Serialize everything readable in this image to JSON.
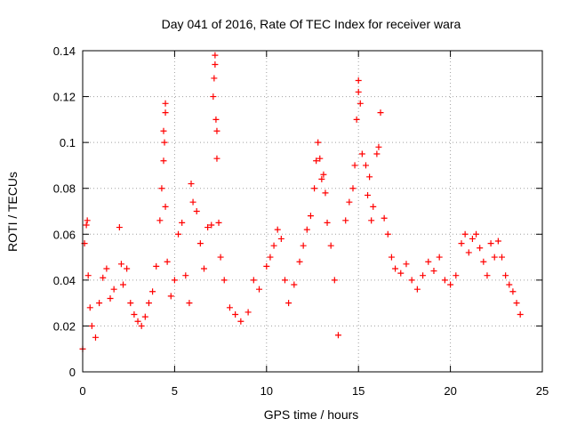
{
  "chart_data": {
    "type": "scatter",
    "title": "Day 041 of 2016, Rate Of TEC Index for receiver wara",
    "xlabel": "GPS time / hours",
    "ylabel": "ROTI / TECUs",
    "xlim": [
      0,
      25
    ],
    "ylim": [
      0,
      0.14
    ],
    "xticks": [
      0,
      5,
      10,
      15,
      20,
      25
    ],
    "xtick_labels": [
      "0",
      "5",
      "10",
      "15",
      "20",
      "25"
    ],
    "yticks": [
      0,
      0.02,
      0.04,
      0.06,
      0.08,
      0.1,
      0.12,
      0.14
    ],
    "ytick_labels": [
      "0",
      "0.02",
      "0.04",
      "0.06",
      "0.08",
      "0.1",
      "0.12",
      "0.14"
    ],
    "grid": true,
    "marker": "+",
    "series": [
      {
        "name": "ROTI",
        "color": "#ff0000",
        "x": [
          0.0,
          0.1,
          0.2,
          0.25,
          0.3,
          0.4,
          0.5,
          0.7,
          0.9,
          1.1,
          1.3,
          1.5,
          1.7,
          2.0,
          2.1,
          2.2,
          2.4,
          2.6,
          2.8,
          3.0,
          3.2,
          3.4,
          3.6,
          3.8,
          4.0,
          4.2,
          4.3,
          4.4,
          4.4,
          4.45,
          4.5,
          4.5,
          4.5,
          4.6,
          4.8,
          5.0,
          5.2,
          5.4,
          5.6,
          5.8,
          5.9,
          6.0,
          6.2,
          6.4,
          6.6,
          6.8,
          7.0,
          7.1,
          7.15,
          7.2,
          7.2,
          7.25,
          7.3,
          7.3,
          7.4,
          7.5,
          7.7,
          8.0,
          8.3,
          8.6,
          9.0,
          9.3,
          9.6,
          10.0,
          10.2,
          10.4,
          10.6,
          10.8,
          11.0,
          11.2,
          11.5,
          11.8,
          12.0,
          12.2,
          12.4,
          12.6,
          12.7,
          12.8,
          12.9,
          13.0,
          13.1,
          13.2,
          13.3,
          13.5,
          13.7,
          13.9,
          14.3,
          14.5,
          14.7,
          14.8,
          14.9,
          15.0,
          15.0,
          15.1,
          15.2,
          15.4,
          15.5,
          15.6,
          15.7,
          15.8,
          16.0,
          16.1,
          16.2,
          16.4,
          16.6,
          16.8,
          17.0,
          17.3,
          17.6,
          17.9,
          18.2,
          18.5,
          18.8,
          19.1,
          19.4,
          19.7,
          20.0,
          20.3,
          20.6,
          20.8,
          21.0,
          21.2,
          21.4,
          21.6,
          21.8,
          22.0,
          22.2,
          22.4,
          22.6,
          22.8,
          23.0,
          23.2,
          23.4,
          23.6,
          23.8
        ],
        "y": [
          0.01,
          0.056,
          0.064,
          0.066,
          0.042,
          0.028,
          0.02,
          0.015,
          0.03,
          0.041,
          0.045,
          0.032,
          0.036,
          0.063,
          0.047,
          0.038,
          0.045,
          0.03,
          0.025,
          0.022,
          0.02,
          0.024,
          0.03,
          0.035,
          0.046,
          0.066,
          0.08,
          0.092,
          0.105,
          0.1,
          0.117,
          0.113,
          0.072,
          0.048,
          0.033,
          0.04,
          0.06,
          0.065,
          0.042,
          0.03,
          0.082,
          0.074,
          0.07,
          0.056,
          0.045,
          0.063,
          0.064,
          0.12,
          0.128,
          0.138,
          0.134,
          0.11,
          0.105,
          0.093,
          0.065,
          0.05,
          0.04,
          0.028,
          0.025,
          0.022,
          0.026,
          0.04,
          0.036,
          0.046,
          0.05,
          0.055,
          0.062,
          0.058,
          0.04,
          0.03,
          0.038,
          0.048,
          0.055,
          0.062,
          0.068,
          0.08,
          0.092,
          0.1,
          0.093,
          0.084,
          0.086,
          0.078,
          0.065,
          0.055,
          0.04,
          0.016,
          0.066,
          0.074,
          0.08,
          0.09,
          0.11,
          0.127,
          0.122,
          0.117,
          0.095,
          0.09,
          0.077,
          0.085,
          0.066,
          0.072,
          0.095,
          0.098,
          0.113,
          0.067,
          0.06,
          0.05,
          0.045,
          0.043,
          0.047,
          0.04,
          0.036,
          0.042,
          0.048,
          0.044,
          0.05,
          0.04,
          0.038,
          0.042,
          0.056,
          0.06,
          0.052,
          0.058,
          0.06,
          0.054,
          0.048,
          0.042,
          0.056,
          0.05,
          0.057,
          0.05,
          0.042,
          0.038,
          0.035,
          0.03,
          0.025
        ]
      }
    ]
  }
}
